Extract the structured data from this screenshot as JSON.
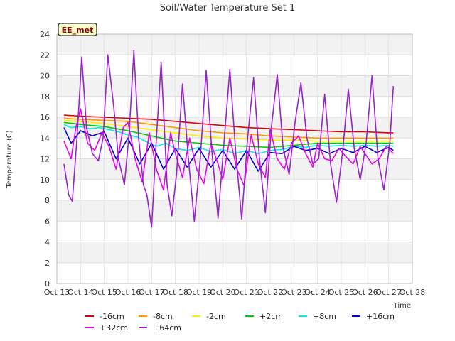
{
  "chart_data": {
    "type": "line",
    "title": "Soil/Water Temperature Set 1",
    "xlabel": "Time",
    "ylabel": "Temperature (C)",
    "badge": "EE_met",
    "xlim": [
      13,
      28
    ],
    "ylim": [
      0,
      24
    ],
    "x_ticks": [
      {
        "v": 13,
        "label": "Oct 13"
      },
      {
        "v": 14,
        "label": "Oct 14"
      },
      {
        "v": 15,
        "label": "Oct 15"
      },
      {
        "v": 16,
        "label": "Oct 16"
      },
      {
        "v": 17,
        "label": "Oct 17"
      },
      {
        "v": 18,
        "label": "Oct 18"
      },
      {
        "v": 19,
        "label": "Oct 19"
      },
      {
        "v": 20,
        "label": "Oct 20"
      },
      {
        "v": 21,
        "label": "Oct 21"
      },
      {
        "v": 22,
        "label": "Oct 22"
      },
      {
        "v": 23,
        "label": "Oct 23"
      },
      {
        "v": 24,
        "label": "Oct 24"
      },
      {
        "v": 25,
        "label": "Oct 25"
      },
      {
        "v": 26,
        "label": "Oct 26"
      },
      {
        "v": 27,
        "label": "Oct 27"
      },
      {
        "v": 28,
        "label": "Oct 28"
      }
    ],
    "y_ticks": [
      0,
      2,
      4,
      6,
      8,
      10,
      12,
      14,
      16,
      18,
      20,
      22,
      24
    ],
    "grid": true,
    "legend_position": "bottom",
    "series": [
      {
        "name": "-16cm",
        "color": "#dd0000",
        "x": [
          13.3,
          14,
          15,
          16,
          17,
          18,
          19,
          20,
          21,
          22,
          23,
          24,
          25,
          26,
          27,
          27.2
        ],
        "y": [
          16.2,
          16.1,
          16.0,
          15.9,
          15.8,
          15.6,
          15.4,
          15.2,
          15.0,
          14.9,
          14.8,
          14.7,
          14.6,
          14.6,
          14.5,
          14.5
        ]
      },
      {
        "name": "-8cm",
        "color": "#ff9900",
        "x": [
          13.3,
          14,
          15,
          16,
          17,
          18,
          19,
          20,
          21,
          22,
          23,
          24,
          25,
          26,
          27,
          27.2
        ],
        "y": [
          15.9,
          15.8,
          15.7,
          15.6,
          15.3,
          15.0,
          14.7,
          14.5,
          14.4,
          14.2,
          14.1,
          14.0,
          14.0,
          14.0,
          14.0,
          14.0
        ]
      },
      {
        "name": "-2cm",
        "color": "#ffee00",
        "x": [
          13.3,
          14,
          15,
          16,
          17,
          18,
          19,
          20,
          21,
          22,
          23,
          24,
          25,
          26,
          27,
          27.2
        ],
        "y": [
          15.7,
          15.6,
          15.4,
          15.1,
          14.8,
          14.5,
          14.2,
          14.0,
          13.9,
          13.8,
          13.8,
          13.7,
          13.7,
          13.7,
          13.7,
          13.7
        ]
      },
      {
        "name": "+2cm",
        "color": "#00cc00",
        "x": [
          13.3,
          14,
          15,
          16,
          17,
          18,
          19,
          20,
          21,
          22,
          23,
          24,
          25,
          26,
          27,
          27.2
        ],
        "y": [
          15.5,
          15.3,
          15.1,
          14.7,
          14.2,
          13.7,
          13.5,
          13.3,
          13.2,
          13.1,
          13.3,
          13.5,
          13.5,
          13.5,
          13.5,
          13.5
        ]
      },
      {
        "name": "+8cm",
        "color": "#00eeee",
        "x": [
          13.3,
          13.6,
          14,
          14.4,
          14.8,
          15.2,
          15.6,
          16,
          16.4,
          16.8,
          17.2,
          17.6,
          18,
          18.5,
          19,
          19.5,
          20,
          20.5,
          21,
          21.5,
          22,
          22.5,
          23,
          23.5,
          24,
          24.5,
          25,
          25.5,
          26,
          26.5,
          27,
          27.2
        ],
        "y": [
          15.3,
          15.0,
          15.1,
          14.9,
          15.0,
          14.8,
          14.6,
          14.3,
          14.1,
          13.6,
          13.2,
          13.5,
          13.0,
          12.8,
          13.1,
          12.7,
          12.9,
          12.5,
          12.8,
          12.5,
          12.8,
          12.9,
          13.2,
          13.1,
          13.3,
          13.2,
          13.3,
          13.2,
          13.3,
          13.2,
          13.3,
          13.2
        ]
      },
      {
        "name": "+16cm",
        "color": "#0000cc",
        "x": [
          13.3,
          13.6,
          14,
          14.5,
          15,
          15.5,
          16,
          16.5,
          17,
          17.5,
          18,
          18.5,
          19,
          19.5,
          20,
          20.5,
          21,
          21.5,
          22,
          22.5,
          23,
          23.5,
          24,
          24.5,
          25,
          25.5,
          26,
          26.5,
          27,
          27.2
        ],
        "y": [
          15.0,
          13.5,
          14.7,
          14.2,
          14.6,
          12.0,
          14.0,
          11.5,
          13.5,
          11.0,
          13.0,
          11.2,
          13.0,
          11.2,
          12.8,
          11.0,
          12.8,
          10.8,
          12.6,
          12.5,
          13.2,
          12.8,
          13.0,
          12.5,
          13.0,
          12.6,
          13.2,
          12.6,
          13.1,
          12.8
        ]
      },
      {
        "name": "+32cm",
        "color": "#ee00ee",
        "x": [
          13.3,
          13.6,
          13.8,
          14,
          14.3,
          14.6,
          14.9,
          15.2,
          15.5,
          15.8,
          16,
          16.3,
          16.6,
          16.9,
          17.2,
          17.5,
          17.8,
          18,
          18.3,
          18.6,
          18.9,
          19.2,
          19.5,
          19.8,
          20,
          20.3,
          20.6,
          20.9,
          21.2,
          21.5,
          21.8,
          22,
          22.3,
          22.6,
          22.9,
          23.2,
          23.5,
          23.8,
          24,
          24.3,
          24.6,
          24.9,
          25.2,
          25.5,
          25.8,
          26,
          26.3,
          26.6,
          26.9,
          27.2
        ],
        "y": [
          13.7,
          12.0,
          15.0,
          16.8,
          13.5,
          12.8,
          14.5,
          13.2,
          11.0,
          15.0,
          15.5,
          12.0,
          9.8,
          14.5,
          11.0,
          9.0,
          14.5,
          12.5,
          10.2,
          14.0,
          11.0,
          9.6,
          13.5,
          11.5,
          10.0,
          14.0,
          11.0,
          9.4,
          14.3,
          11.5,
          10.2,
          14.8,
          12.0,
          11.0,
          13.5,
          14.2,
          12.5,
          11.2,
          13.5,
          12.0,
          11.8,
          13.0,
          12.2,
          11.5,
          13.2,
          12.5,
          11.5,
          12.0,
          13.2,
          12.5
        ]
      },
      {
        "name": "+64cm",
        "color": "#9922cc",
        "x": [
          13.3,
          13.5,
          13.65,
          13.85,
          14.05,
          14.25,
          14.5,
          14.75,
          14.95,
          15.15,
          15.4,
          15.6,
          15.85,
          16.05,
          16.25,
          16.45,
          16.65,
          16.8,
          17.0,
          17.2,
          17.4,
          17.65,
          17.85,
          18.05,
          18.3,
          18.55,
          18.8,
          19.05,
          19.3,
          19.55,
          19.8,
          20.05,
          20.3,
          20.55,
          20.8,
          21.05,
          21.3,
          21.55,
          21.8,
          22.05,
          22.3,
          22.55,
          22.8,
          23.05,
          23.3,
          23.55,
          23.8,
          24.05,
          24.3,
          24.55,
          24.8,
          25.05,
          25.3,
          25.55,
          25.8,
          26.05,
          26.3,
          26.55,
          26.8,
          27.05,
          27.2
        ],
        "y": [
          11.5,
          8.5,
          7.9,
          14.0,
          21.8,
          15.0,
          12.5,
          11.8,
          14.0,
          22.0,
          17.0,
          12.0,
          9.5,
          14.5,
          22.4,
          14.0,
          9.5,
          8.5,
          5.4,
          14.0,
          21.3,
          9.5,
          6.5,
          10.5,
          19.2,
          12.0,
          6.0,
          12.0,
          20.5,
          12.5,
          6.3,
          13.5,
          20.6,
          12.5,
          6.2,
          14.0,
          19.8,
          12.0,
          6.8,
          15.0,
          20.1,
          13.0,
          10.5,
          15.5,
          19.3,
          14.0,
          11.5,
          12.0,
          18.2,
          11.5,
          7.8,
          12.5,
          18.7,
          13.0,
          10.0,
          13.5,
          20.0,
          12.0,
          9.0,
          13.5,
          19.0
        ]
      }
    ]
  }
}
